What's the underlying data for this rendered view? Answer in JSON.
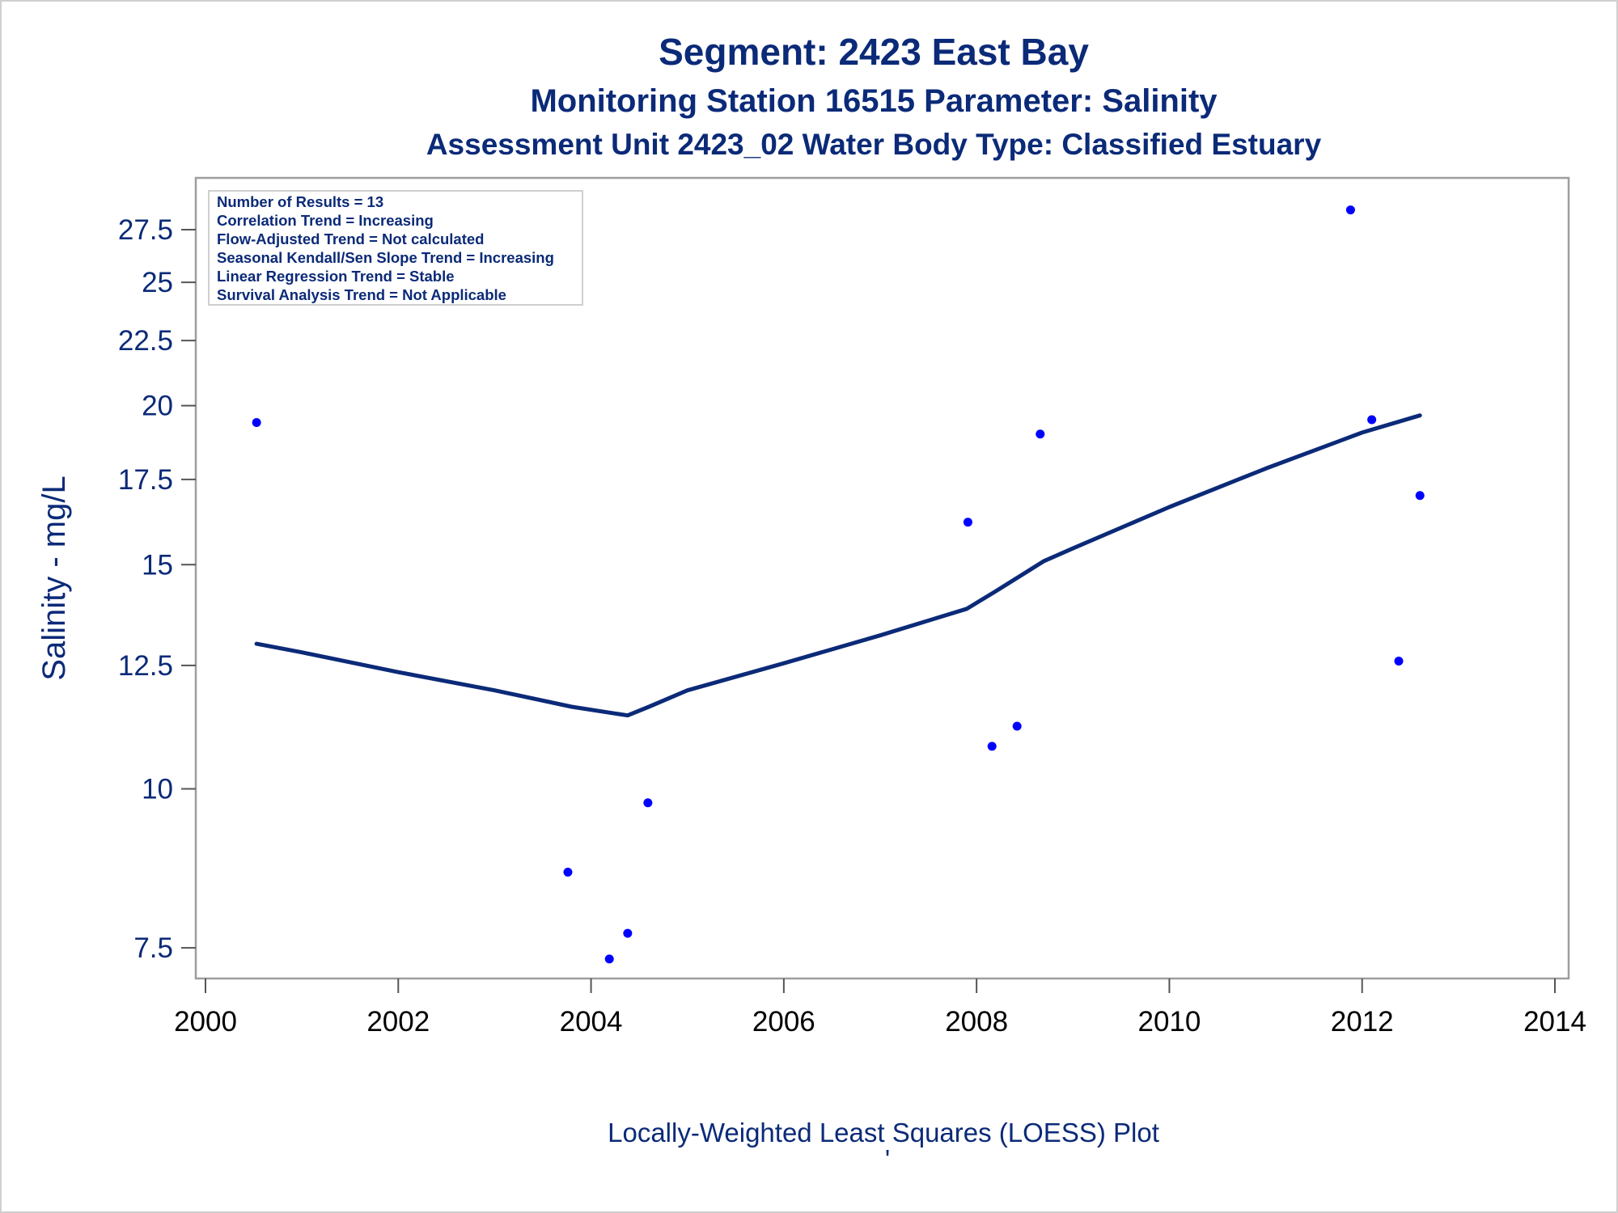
{
  "titles": {
    "title": "Segment: 2423  East Bay",
    "subtitle1": "Monitoring Station 16515 Parameter: Salinity",
    "subtitle2": "Assessment Unit 2423_02   Water Body Type: Classified Estuary"
  },
  "stats_box": [
    "Number of Results = 13",
    "Correlation Trend = Increasing",
    "Flow-Adjusted Trend = Not calculated",
    "Seasonal Kendall/Sen Slope Trend = Increasing",
    "Linear Regression Trend = Stable",
    "Survival Analysis Trend = Not Applicable"
  ],
  "footnote": "Locally-Weighted Least Squares (LOESS) Plot",
  "footnote_mark": "'",
  "colors": {
    "text": "#0b2a78",
    "points": "#0000ff",
    "loess_line": "#0b2a78",
    "frame": "#9e9e9e"
  },
  "chart_data": {
    "type": "scatter",
    "title": "Segment: 2423  East Bay",
    "xlabel": "",
    "ylabel": "Salinity - mg/L",
    "y_scale": "log",
    "xlim": [
      2000,
      2014
    ],
    "ylim": [
      7.2,
      29.5
    ],
    "x_ticks": [
      2000,
      2002,
      2004,
      2006,
      2008,
      2010,
      2012,
      2014
    ],
    "y_ticks": [
      7.5,
      10,
      12.5,
      15,
      17.5,
      20,
      22.5,
      25,
      27.5
    ],
    "y_tick_labels": [
      "7.5",
      "10",
      "12.5",
      "15",
      "17.5",
      "20",
      "22.5",
      "25",
      "27.5"
    ],
    "grid": false,
    "series": [
      {
        "name": "",
        "kind": "scatter",
        "points": [
          [
            2000.53,
            19.4
          ],
          [
            2003.76,
            8.6
          ],
          [
            2004.19,
            7.35
          ],
          [
            2004.38,
            7.7
          ],
          [
            2004.59,
            9.75
          ],
          [
            2007.91,
            16.2
          ],
          [
            2008.16,
            10.8
          ],
          [
            2008.42,
            11.2
          ],
          [
            2008.66,
            19.0
          ],
          [
            2011.88,
            28.5
          ],
          [
            2012.1,
            19.5
          ],
          [
            2012.38,
            12.6
          ],
          [
            2012.6,
            17.0
          ]
        ]
      },
      {
        "name": "",
        "kind": "line",
        "points": [
          [
            2000.53,
            13.0
          ],
          [
            2001.0,
            12.8
          ],
          [
            2002.0,
            12.35
          ],
          [
            2003.0,
            11.95
          ],
          [
            2003.8,
            11.6
          ],
          [
            2004.38,
            11.42
          ],
          [
            2004.6,
            11.6
          ],
          [
            2005.0,
            11.95
          ],
          [
            2006.0,
            12.55
          ],
          [
            2007.0,
            13.2
          ],
          [
            2007.9,
            13.85
          ],
          [
            2008.2,
            14.3
          ],
          [
            2008.7,
            15.1
          ],
          [
            2009.0,
            15.45
          ],
          [
            2010.0,
            16.65
          ],
          [
            2011.0,
            17.85
          ],
          [
            2012.0,
            19.05
          ],
          [
            2012.6,
            19.65
          ]
        ]
      }
    ]
  }
}
